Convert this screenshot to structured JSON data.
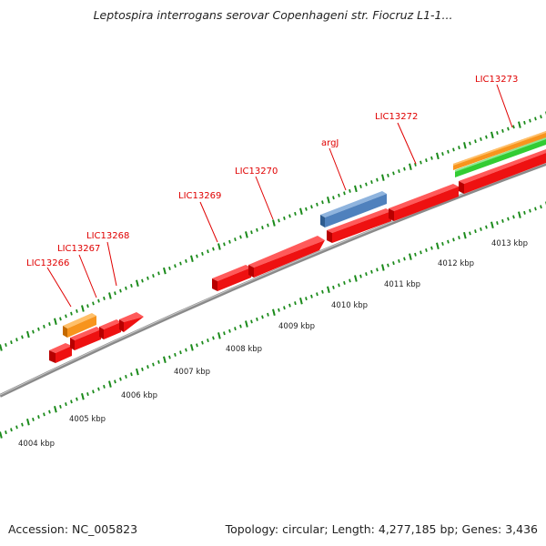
{
  "title": "Leptospira interrogans serovar Copenhageni str. Fiocruz L1-1...",
  "footer": {
    "accession": "Accession: NC_005823",
    "summary": "Topology: circular; Length: 4,277,185 bp; Genes: 3,436"
  },
  "colors": {
    "gene": "#ee1111",
    "gene_dark": "#b80000",
    "cds_orange": "#f7941d",
    "cds_green": "#33cc33",
    "cds_blue": "#4f81bd",
    "backbone": "#8a8a8a",
    "tick": "#1a8a1a",
    "label": "#e00000"
  },
  "tick_labels": [
    "4004 kbp",
    "4005 kbp",
    "4006 kbp",
    "4007 kbp",
    "4008 kbp",
    "4009 kbp",
    "4010 kbp",
    "4011 kbp",
    "4012 kbp",
    "4013 kbp"
  ],
  "gene_labels": [
    "LIC13266",
    "LIC13267",
    "LIC13268",
    "LIC13269",
    "LIC13270",
    "argJ",
    "LIC13272",
    "LIC13273"
  ]
}
